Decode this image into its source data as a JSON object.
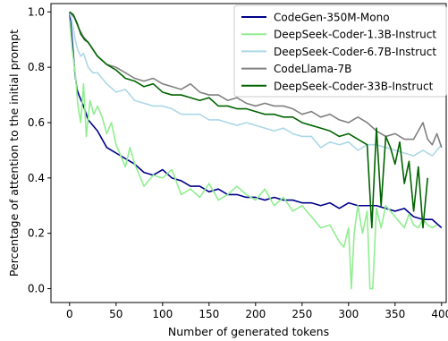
{
  "chart_data": {
    "type": "line",
    "title": "",
    "xlabel": "Number of generated tokens",
    "ylabel": "Percentage of attention to the initial prompt",
    "xlim": [
      -20,
      405
    ],
    "ylim": [
      -0.05,
      1.03
    ],
    "x_ticks": [
      0,
      50,
      100,
      150,
      200,
      250,
      300,
      350,
      400
    ],
    "y_ticks": [
      0.0,
      0.2,
      0.4,
      0.6,
      0.8,
      1.0
    ],
    "x_tick_labels": [
      "0",
      "50",
      "100",
      "150",
      "200",
      "250",
      "300",
      "350",
      "400"
    ],
    "y_tick_labels": [
      "0.0",
      "0.2",
      "0.4",
      "0.6",
      "0.8",
      "1.0"
    ],
    "grid": false,
    "legend_position": "top-right",
    "series": [
      {
        "name": "CodeGen-350M-Mono",
        "color": "#00008b",
        "x": [
          0,
          2,
          4,
          6,
          8,
          10,
          15,
          20,
          30,
          40,
          50,
          60,
          70,
          80,
          90,
          100,
          110,
          120,
          130,
          140,
          150,
          160,
          170,
          180,
          190,
          200,
          210,
          220,
          230,
          240,
          250,
          260,
          270,
          280,
          290,
          300,
          310,
          320,
          330,
          340,
          350,
          360,
          370,
          380,
          390,
          400
        ],
        "y": [
          1.0,
          0.93,
          0.85,
          0.77,
          0.72,
          0.7,
          0.66,
          0.61,
          0.57,
          0.51,
          0.49,
          0.47,
          0.45,
          0.42,
          0.41,
          0.43,
          0.4,
          0.39,
          0.37,
          0.37,
          0.35,
          0.36,
          0.34,
          0.34,
          0.33,
          0.33,
          0.32,
          0.33,
          0.32,
          0.32,
          0.31,
          0.31,
          0.3,
          0.31,
          0.29,
          0.31,
          0.3,
          0.3,
          0.3,
          0.29,
          0.28,
          0.29,
          0.26,
          0.25,
          0.25,
          0.22
        ]
      },
      {
        "name": "DeepSeek-Coder-1.3B-Instruct",
        "color": "#90ee90",
        "x": [
          0,
          3,
          6,
          9,
          12,
          15,
          18,
          22,
          26,
          30,
          35,
          40,
          45,
          50,
          55,
          60,
          65,
          70,
          80,
          90,
          100,
          110,
          120,
          130,
          140,
          150,
          160,
          170,
          180,
          190,
          200,
          210,
          220,
          230,
          240,
          250,
          260,
          270,
          280,
          290,
          295,
          300,
          303,
          306,
          310,
          315,
          320,
          323,
          326,
          330,
          335,
          340,
          345,
          350,
          355,
          360,
          365,
          370,
          375,
          380,
          385,
          390,
          395
        ],
        "y": [
          0.97,
          0.86,
          0.78,
          0.66,
          0.6,
          0.74,
          0.55,
          0.68,
          0.63,
          0.66,
          0.62,
          0.56,
          0.6,
          0.52,
          0.48,
          0.44,
          0.51,
          0.45,
          0.37,
          0.41,
          0.4,
          0.43,
          0.34,
          0.36,
          0.33,
          0.38,
          0.32,
          0.34,
          0.37,
          0.34,
          0.32,
          0.36,
          0.3,
          0.33,
          0.28,
          0.3,
          0.26,
          0.22,
          0.23,
          0.17,
          0.15,
          0.22,
          0.0,
          0.2,
          0.3,
          0.2,
          0.28,
          0.0,
          0.0,
          0.29,
          0.22,
          0.3,
          0.28,
          0.26,
          0.24,
          0.22,
          0.27,
          0.23,
          0.22,
          0.25,
          0.23,
          0.22,
          0.23
        ]
      },
      {
        "name": "DeepSeek-Coder-6.7B-Instruct",
        "color": "#add8e6",
        "x": [
          0,
          3,
          6,
          9,
          12,
          15,
          20,
          25,
          30,
          35,
          40,
          50,
          60,
          70,
          80,
          90,
          100,
          110,
          120,
          130,
          140,
          150,
          160,
          170,
          180,
          190,
          200,
          210,
          220,
          230,
          240,
          250,
          260,
          270,
          280,
          290,
          300,
          310,
          320,
          330,
          340,
          350,
          360,
          370,
          380,
          390,
          400
        ],
        "y": [
          1.0,
          0.96,
          0.9,
          0.86,
          0.84,
          0.85,
          0.8,
          0.78,
          0.78,
          0.76,
          0.74,
          0.71,
          0.72,
          0.68,
          0.67,
          0.66,
          0.66,
          0.65,
          0.63,
          0.63,
          0.63,
          0.61,
          0.61,
          0.6,
          0.59,
          0.6,
          0.59,
          0.58,
          0.57,
          0.58,
          0.56,
          0.55,
          0.55,
          0.51,
          0.53,
          0.52,
          0.53,
          0.5,
          0.52,
          0.52,
          0.51,
          0.5,
          0.49,
          0.48,
          0.5,
          0.48,
          0.52
        ]
      },
      {
        "name": "CodeLlama-7B",
        "color": "#808080",
        "x": [
          0,
          5,
          10,
          15,
          20,
          30,
          40,
          50,
          60,
          70,
          80,
          90,
          100,
          110,
          120,
          130,
          140,
          150,
          160,
          170,
          180,
          190,
          200,
          210,
          220,
          230,
          240,
          250,
          260,
          270,
          280,
          290,
          300,
          310,
          320,
          330,
          340,
          350,
          360,
          370,
          380,
          385,
          390,
          395,
          400
        ],
        "y": [
          1.0,
          0.98,
          0.94,
          0.91,
          0.89,
          0.84,
          0.81,
          0.8,
          0.78,
          0.76,
          0.75,
          0.76,
          0.74,
          0.73,
          0.72,
          0.74,
          0.71,
          0.7,
          0.7,
          0.68,
          0.69,
          0.67,
          0.66,
          0.67,
          0.66,
          0.66,
          0.65,
          0.63,
          0.64,
          0.62,
          0.63,
          0.61,
          0.6,
          0.62,
          0.6,
          0.57,
          0.55,
          0.56,
          0.54,
          0.54,
          0.6,
          0.54,
          0.52,
          0.56,
          0.51
        ]
      },
      {
        "name": "DeepSeek-Coder-33B-Instruct",
        "color": "#006400",
        "x": [
          0,
          4,
          8,
          12,
          16,
          20,
          30,
          40,
          50,
          60,
          70,
          80,
          90,
          100,
          110,
          120,
          130,
          140,
          150,
          160,
          170,
          180,
          190,
          200,
          210,
          220,
          230,
          240,
          250,
          260,
          270,
          280,
          290,
          300,
          310,
          320,
          325,
          330,
          335,
          340,
          345,
          350,
          355,
          360,
          365,
          370,
          375,
          380,
          385
        ],
        "y": [
          1.0,
          0.99,
          0.96,
          0.92,
          0.9,
          0.89,
          0.84,
          0.81,
          0.79,
          0.76,
          0.75,
          0.73,
          0.74,
          0.71,
          0.7,
          0.7,
          0.69,
          0.68,
          0.69,
          0.66,
          0.66,
          0.65,
          0.65,
          0.64,
          0.63,
          0.63,
          0.62,
          0.62,
          0.6,
          0.59,
          0.58,
          0.57,
          0.55,
          0.56,
          0.54,
          0.52,
          0.22,
          0.58,
          0.3,
          0.55,
          0.51,
          0.45,
          0.53,
          0.38,
          0.46,
          0.28,
          0.44,
          0.22,
          0.4
        ]
      }
    ]
  }
}
